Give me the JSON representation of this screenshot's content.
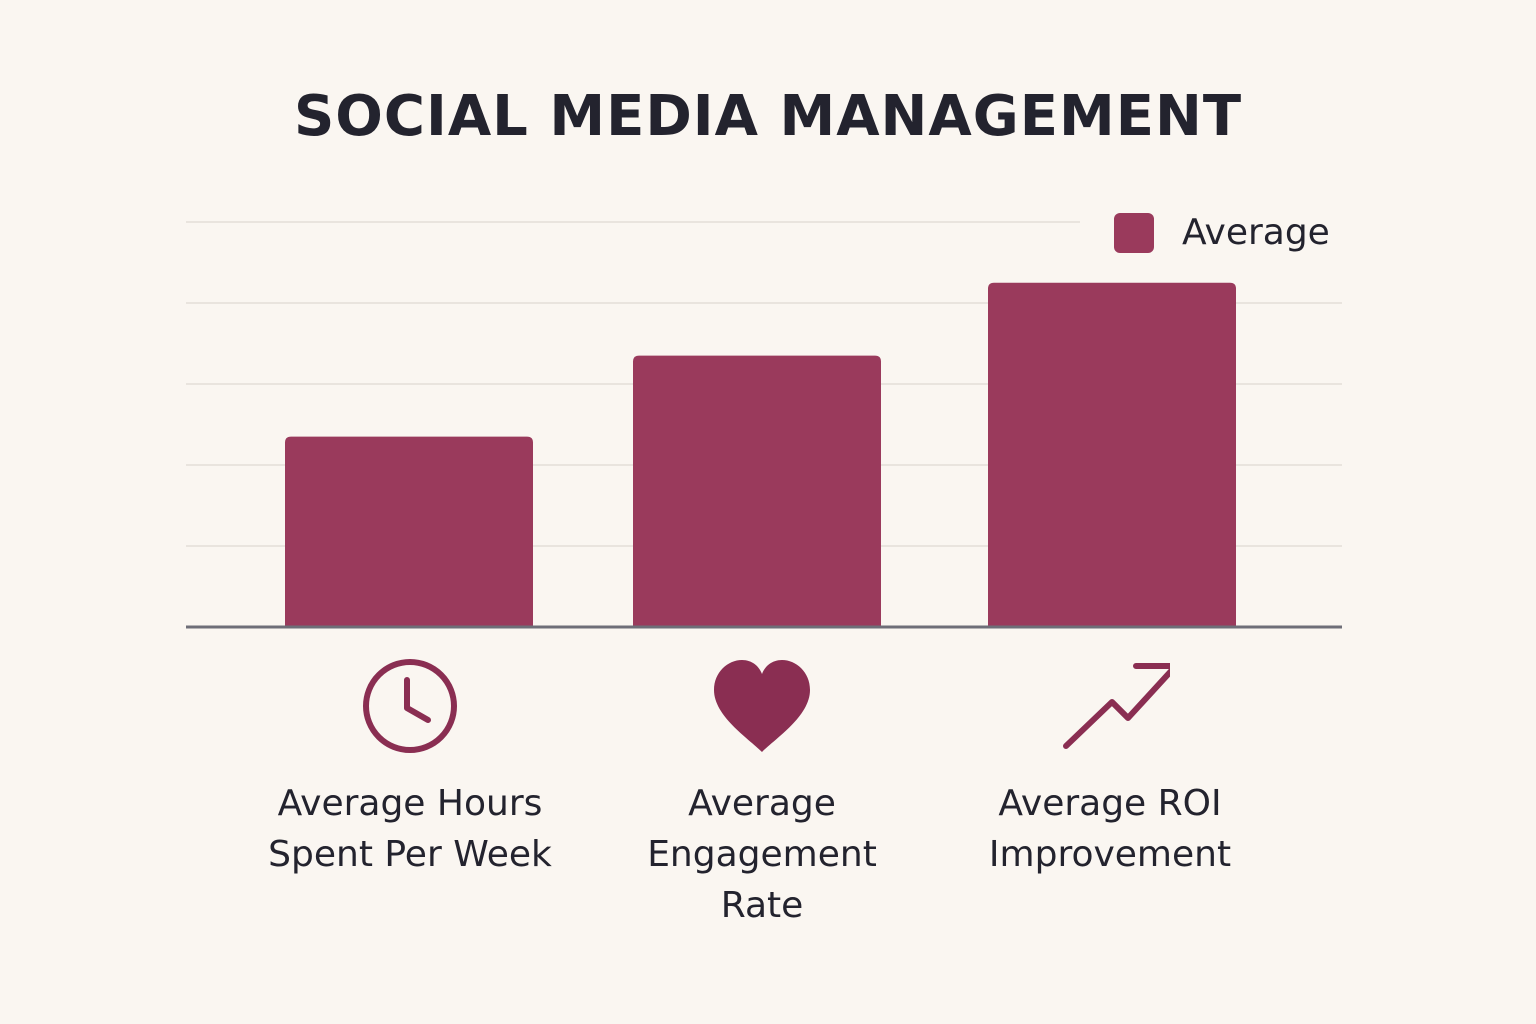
{
  "colors": {
    "bar": "#9a3a5c",
    "grid": "#e9e4de",
    "axis": "#6e6e78",
    "icon": "#8a2e52",
    "text": "#23232e"
  },
  "chart_data": {
    "type": "bar",
    "title": "SOCIAL MEDIA MANAGEMENT",
    "xlabel": "",
    "ylabel": "",
    "ylim": [
      0,
      5
    ],
    "grid": true,
    "legend_position": "top-right",
    "categories": [
      "Average Hours Spent Per Week",
      "Average Engagement Rate",
      "Average ROI Improvement"
    ],
    "series": [
      {
        "name": "Average",
        "values": [
          2.35,
          3.35,
          4.25
        ]
      }
    ]
  },
  "legend": {
    "label": "Average"
  },
  "categories_display": [
    {
      "icon": "clock-icon",
      "label": "Average Hours\nSpent Per Week"
    },
    {
      "icon": "heart-icon",
      "label": "Average\nEngagement\nRate"
    },
    {
      "icon": "trending-up-icon",
      "label": "Average ROI\nImprovement"
    }
  ]
}
